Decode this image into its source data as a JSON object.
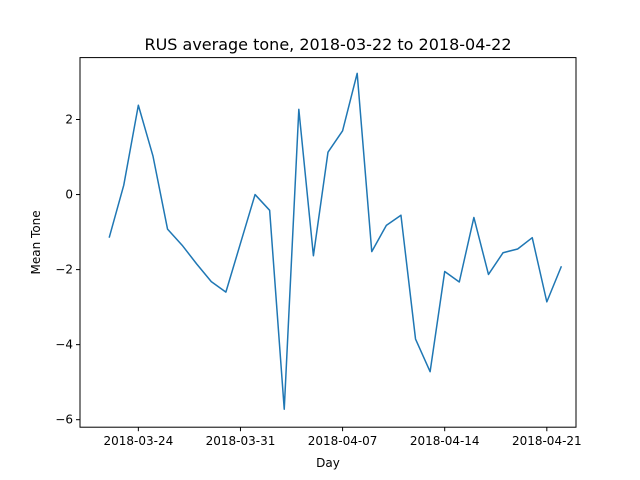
{
  "chart_data": {
    "type": "line",
    "title": "RUS average tone, 2018-03-22 to 2018-04-22",
    "xlabel": "Day",
    "ylabel": "Mean Tone",
    "x_start": "2018-03-22",
    "xlim": [
      "2018-03-20",
      "2018-04-23"
    ],
    "ylim": [
      -6.2,
      3.65
    ],
    "xticks": [
      "2018-03-24",
      "2018-03-31",
      "2018-04-07",
      "2018-04-14",
      "2018-04-21"
    ],
    "yticks": [
      2,
      0,
      -2,
      -4,
      -6
    ],
    "ytick_labels": [
      "2",
      "0",
      "−2",
      "−4",
      "−6"
    ],
    "grid": false,
    "line_color": "#1f77b4",
    "series": [
      {
        "x": [
          "2018-03-22",
          "2018-03-23",
          "2018-03-24",
          "2018-03-25",
          "2018-03-26",
          "2018-03-27",
          "2018-03-28",
          "2018-03-29",
          "2018-03-30",
          "2018-03-31",
          "2018-04-01",
          "2018-04-02",
          "2018-04-03",
          "2018-04-04",
          "2018-04-05",
          "2018-04-06",
          "2018-04-07",
          "2018-04-08",
          "2018-04-09",
          "2018-04-10",
          "2018-04-11",
          "2018-04-12",
          "2018-04-13",
          "2018-04-14",
          "2018-04-15",
          "2018-04-16",
          "2018-04-17",
          "2018-04-18",
          "2018-04-19",
          "2018-04-20",
          "2018-04-21",
          "2018-04-22"
        ],
        "values": [
          -1.15,
          0.25,
          2.38,
          1.03,
          -0.92,
          -1.35,
          -1.85,
          -2.32,
          -2.6,
          -1.3,
          0.0,
          -0.42,
          -5.72,
          2.27,
          -1.63,
          1.13,
          1.7,
          3.23,
          -1.52,
          -0.82,
          -0.55,
          -3.85,
          -4.72,
          -2.05,
          -2.33,
          -0.61,
          -2.13,
          -1.55,
          -1.45,
          -1.15,
          -2.86,
          -1.91
        ]
      }
    ]
  }
}
